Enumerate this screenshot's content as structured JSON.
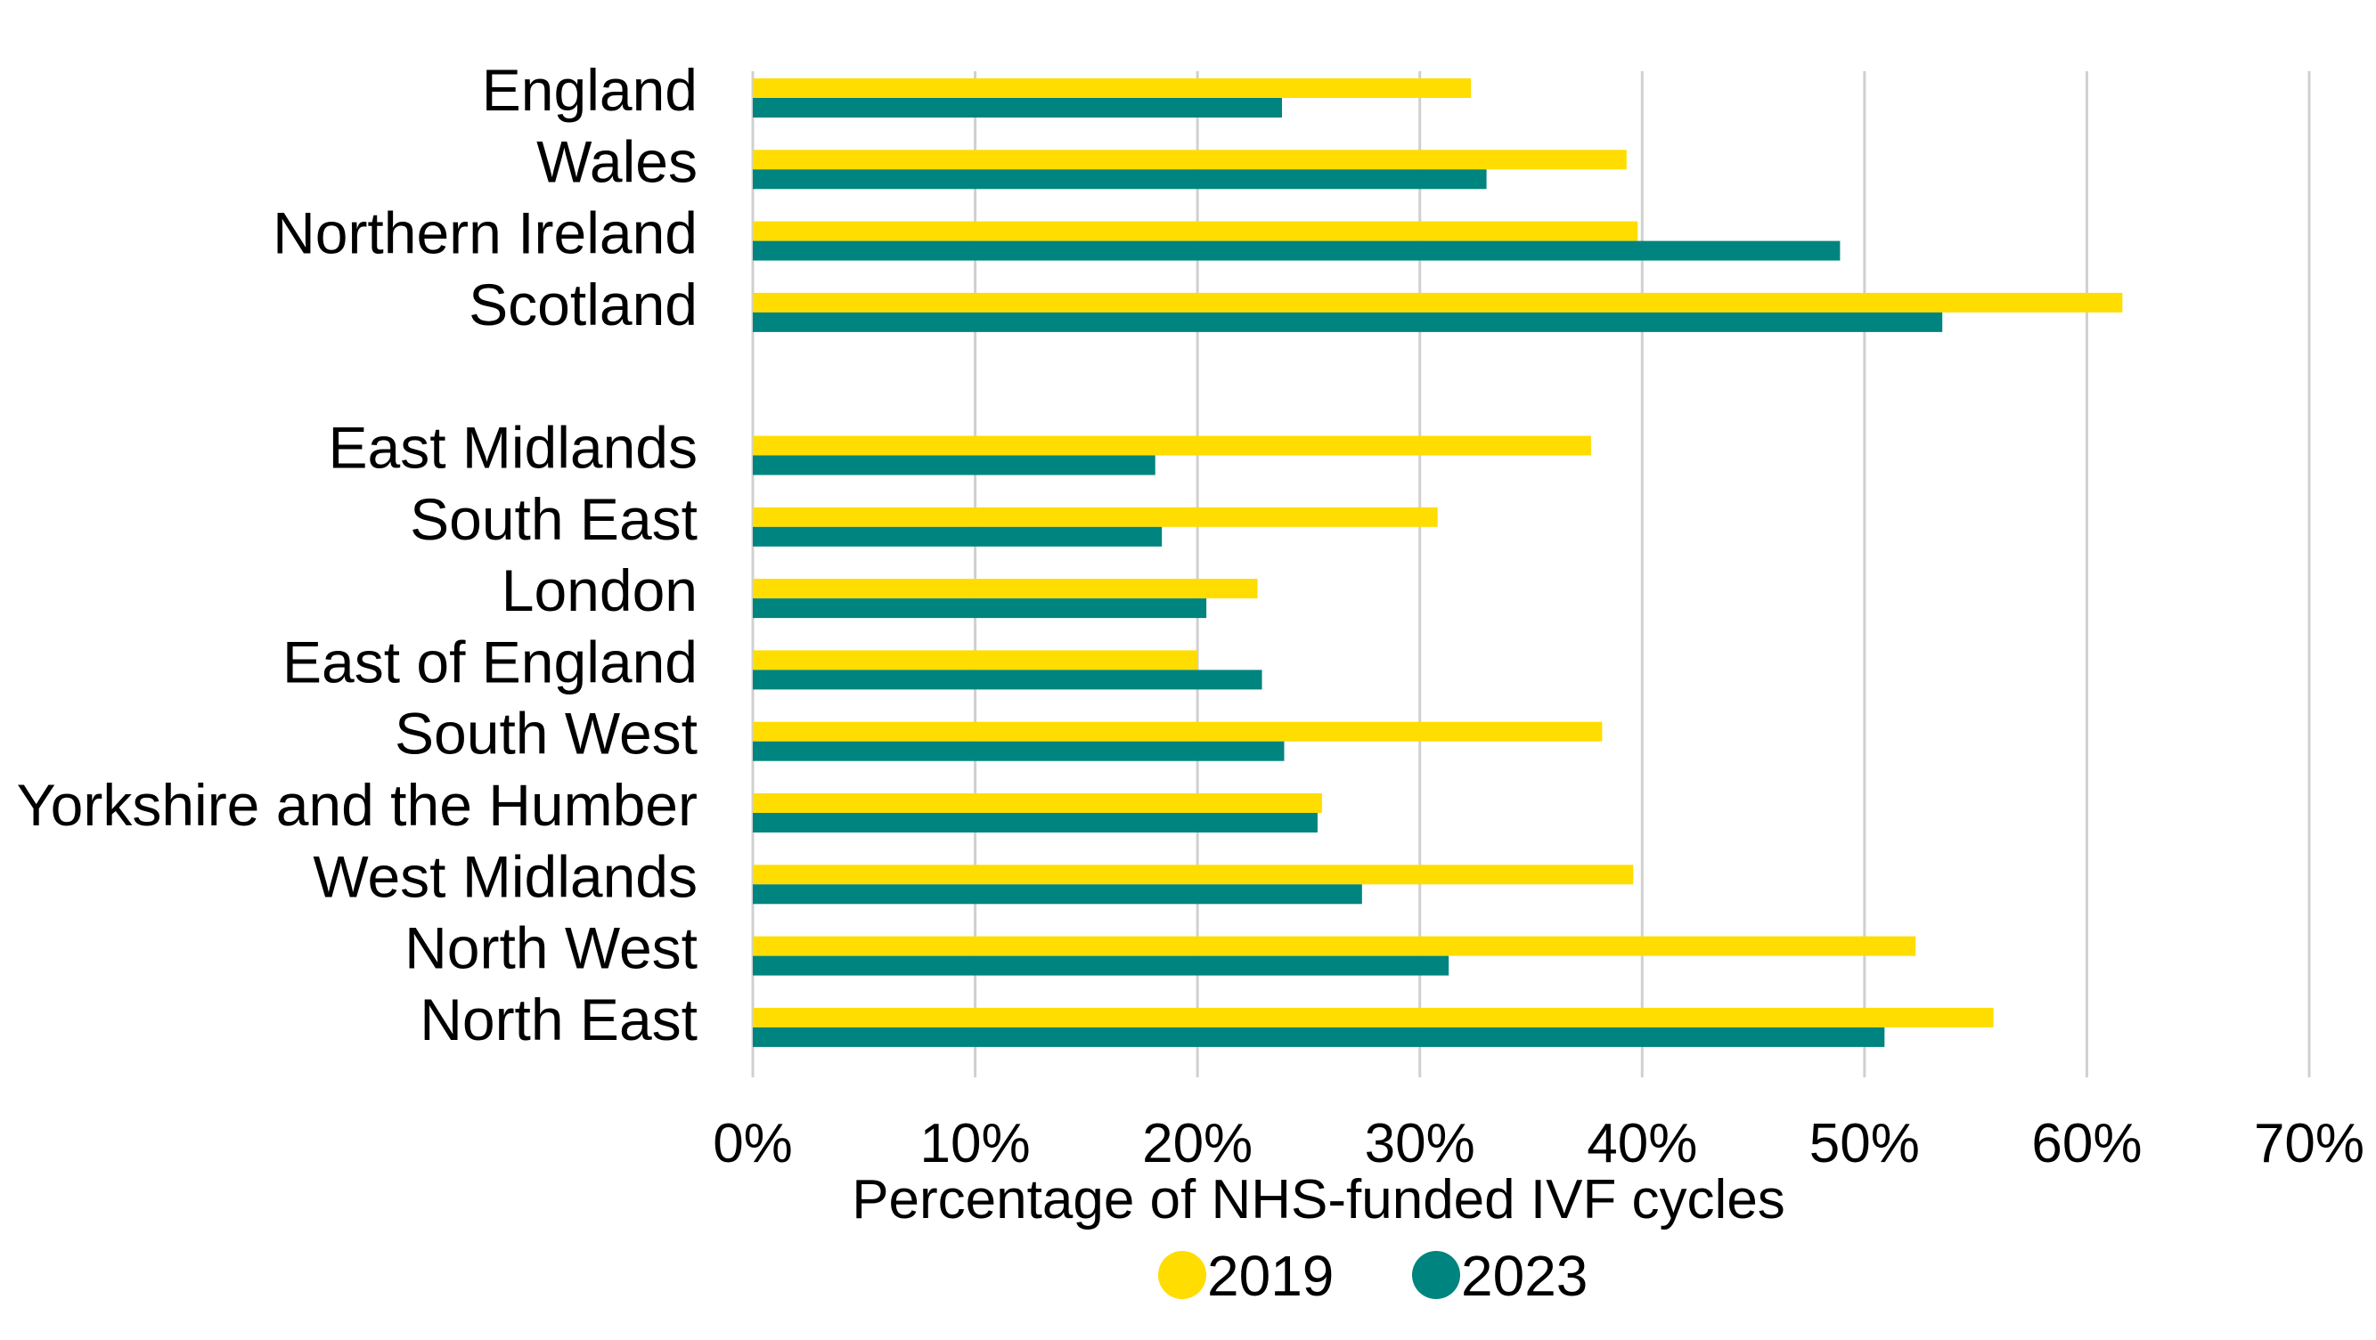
{
  "chart_data": {
    "type": "bar",
    "orientation": "horizontal",
    "categories": [
      "England",
      "Wales",
      "Northern Ireland",
      "Scotland",
      "",
      "East Midlands",
      "South East",
      "London",
      "East of England",
      "South West",
      "Yorkshire and the Humber",
      "West Midlands",
      "North West",
      "North East"
    ],
    "series": [
      {
        "name": "2019",
        "color": "#FFDD00",
        "values": [
          32.3,
          39.3,
          39.8,
          61.6,
          null,
          37.7,
          30.8,
          22.7,
          20.0,
          38.2,
          25.6,
          39.6,
          52.3,
          55.8
        ]
      },
      {
        "name": "2023",
        "color": "#00847F",
        "values": [
          23.8,
          33.0,
          48.9,
          53.5,
          null,
          18.1,
          18.4,
          20.4,
          22.9,
          23.9,
          25.4,
          27.4,
          31.3,
          50.9
        ]
      }
    ],
    "xlabel": "Percentage of NHS-funded IVF cycles",
    "ylabel": "",
    "xlim": [
      0,
      70
    ],
    "xticks": [
      "0%",
      "10%",
      "20%",
      "30%",
      "40%",
      "50%",
      "60%",
      "70%"
    ],
    "grid": "vertical",
    "legend_position": "bottom"
  }
}
